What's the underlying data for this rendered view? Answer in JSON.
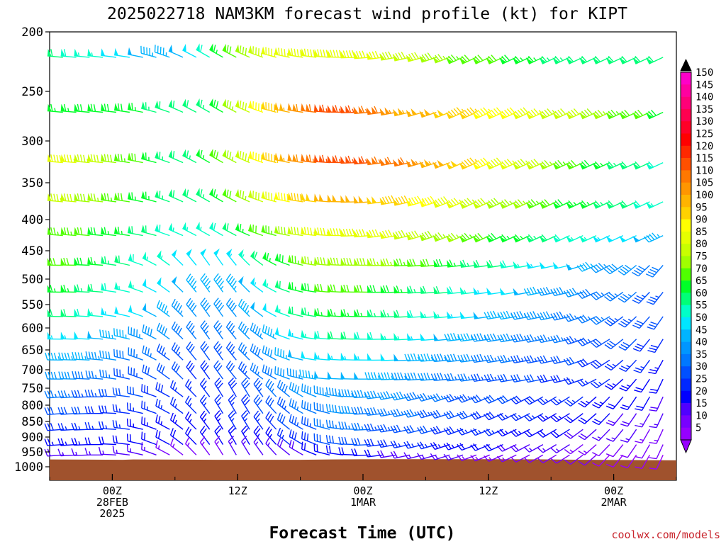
{
  "chart_data": {
    "type": "wind-barb time-height cross-section",
    "title": "2025022718 NAM3KM forecast wind profile (kt) for KIPT",
    "xlabel": "Forecast Time (UTC)",
    "credit": "coolwx.com/models",
    "y_axis": {
      "scale": "log-pressure",
      "range": [
        1000,
        200
      ],
      "ticks": [
        "200",
        "250",
        "300",
        "350",
        "400",
        "450",
        "500",
        "550",
        "600",
        "650",
        "700",
        "750",
        "800",
        "850",
        "900",
        "950",
        "1000"
      ]
    },
    "x_axis": {
      "range_hours": [
        -6,
        54
      ],
      "ticks": [
        {
          "hour": 0,
          "lines": [
            "00Z",
            "28FEB",
            "2025"
          ]
        },
        {
          "hour": 12,
          "lines": [
            "12Z"
          ]
        },
        {
          "hour": 24,
          "lines": [
            "00Z",
            "1MAR"
          ]
        },
        {
          "hour": 36,
          "lines": [
            "12Z"
          ]
        },
        {
          "hour": 48,
          "lines": [
            "00Z",
            "2MAR"
          ]
        }
      ]
    },
    "colorbar": {
      "levels": [
        "150",
        "145",
        "140",
        "135",
        "130",
        "125",
        "120",
        "115",
        "110",
        "105",
        "100",
        "95",
        "90",
        "85",
        "80",
        "75",
        "70",
        "65",
        "60",
        "55",
        "50",
        "45",
        "40",
        "35",
        "30",
        "25",
        "20",
        "15",
        "10",
        "5"
      ],
      "colors": [
        "#ff00c8",
        "#ff00a0",
        "#ff0078",
        "#ff0050",
        "#ff0028",
        "#ff0000",
        "#ff2800",
        "#ff5000",
        "#ff7800",
        "#ff9600",
        "#ffb400",
        "#ffd200",
        "#ffff00",
        "#e6ff00",
        "#c8ff00",
        "#a0ff00",
        "#50ff00",
        "#00ff28",
        "#00ff78",
        "#00ffc8",
        "#00e6ff",
        "#00b4ff",
        "#0096ff",
        "#0078ff",
        "#0050ff",
        "#0028ff",
        "#0000ff",
        "#5000ff",
        "#7800ff",
        "#9600ff"
      ]
    },
    "terrain": {
      "color": "#a0522d",
      "surface_pressure": [
        {
          "hour": -6,
          "p": 975
        },
        {
          "hour": 1,
          "p": 976
        },
        {
          "hour": 2,
          "p": 975
        },
        {
          "hour": 10,
          "p": 976
        },
        {
          "hour": 18,
          "p": 976
        },
        {
          "hour": 21,
          "p": 975
        },
        {
          "hour": 27,
          "p": 974
        },
        {
          "hour": 36,
          "p": 974
        },
        {
          "hour": 42,
          "p": 975
        },
        {
          "hour": 45,
          "p": 976
        },
        {
          "hour": 50,
          "p": 977
        },
        {
          "hour": 54,
          "p": 978
        }
      ]
    },
    "levels_hpa": [
      220,
      270,
      325,
      375,
      425,
      475,
      525,
      575,
      625,
      675,
      725,
      775,
      825,
      875,
      925,
      960
    ],
    "barb_hours_approx": "-6 to 54 every 1.25",
    "speed_kt_by_level": [
      [
        60,
        60,
        58,
        57,
        55,
        52,
        50,
        48,
        47,
        46,
        48,
        52,
        58,
        65,
        72,
        78,
        83,
        85,
        87,
        88,
        88,
        88,
        88,
        88,
        87,
        85,
        84,
        82,
        80,
        78,
        76,
        74,
        72,
        70,
        70,
        68,
        66,
        65,
        64,
        63,
        62,
        62,
        61,
        60,
        60,
        60,
        60,
        60
      ],
      [
        65,
        66,
        67,
        68,
        68,
        68,
        68,
        66,
        64,
        62,
        61,
        62,
        64,
        68,
        75,
        82,
        90,
        97,
        103,
        108,
        112,
        115,
        116,
        115,
        113,
        110,
        107,
        104,
        102,
        100,
        98,
        96,
        95,
        94,
        92,
        90,
        88,
        86,
        84,
        82,
        80,
        78,
        76,
        74,
        72,
        70,
        68,
        66
      ],
      [
        90,
        88,
        86,
        84,
        82,
        78,
        74,
        70,
        66,
        64,
        62,
        63,
        66,
        70,
        76,
        83,
        90,
        97,
        104,
        109,
        113,
        116,
        117,
        117,
        116,
        114,
        112,
        110,
        107,
        104,
        101,
        98,
        95,
        92,
        89,
        86,
        83,
        80,
        77,
        74,
        71,
        68,
        66,
        64,
        62,
        60,
        58,
        56
      ],
      [
        85,
        83,
        81,
        78,
        76,
        73,
        70,
        67,
        65,
        63,
        61,
        62,
        64,
        67,
        71,
        76,
        81,
        86,
        91,
        95,
        98,
        100,
        101,
        101,
        100,
        99,
        97,
        95,
        93,
        91,
        88,
        86,
        84,
        82,
        79,
        77,
        75,
        73,
        71,
        69,
        67,
        65,
        63,
        61,
        60,
        58,
        56,
        54
      ],
      [
        75,
        74,
        73,
        71,
        69,
        67,
        65,
        62,
        60,
        58,
        56,
        56,
        57,
        59,
        62,
        66,
        70,
        74,
        78,
        82,
        85,
        87,
        88,
        88,
        87,
        86,
        85,
        83,
        81,
        79,
        77,
        75,
        73,
        71,
        69,
        67,
        65,
        63,
        61,
        59,
        57,
        55,
        53,
        51,
        50,
        48,
        46,
        44
      ],
      [
        72,
        71,
        70,
        68,
        66,
        64,
        62,
        59,
        57,
        55,
        52,
        51,
        51,
        52,
        54,
        57,
        61,
        65,
        69,
        73,
        76,
        78,
        79,
        79,
        78,
        77,
        76,
        74,
        72,
        70,
        68,
        66,
        64,
        62,
        60,
        58,
        56,
        54,
        52,
        50,
        48,
        46,
        44,
        42,
        40,
        39,
        38,
        37
      ],
      [
        68,
        67,
        66,
        64,
        62,
        59,
        57,
        55,
        52,
        50,
        48,
        46,
        45,
        45,
        46,
        49,
        53,
        57,
        61,
        65,
        68,
        70,
        71,
        71,
        70,
        69,
        68,
        66,
        64,
        62,
        60,
        58,
        56,
        54,
        52,
        50,
        48,
        46,
        44,
        42,
        40,
        38,
        37,
        36,
        35,
        34,
        33,
        32
      ],
      [
        62,
        61,
        60,
        58,
        56,
        54,
        52,
        50,
        48,
        46,
        44,
        42,
        41,
        41,
        42,
        45,
        48,
        52,
        56,
        60,
        63,
        65,
        66,
        66,
        65,
        64,
        63,
        61,
        59,
        57,
        55,
        53,
        51,
        49,
        47,
        45,
        43,
        41,
        40,
        38,
        37,
        36,
        35,
        34,
        33,
        32,
        31,
        30
      ],
      [
        55,
        54,
        53,
        51,
        49,
        47,
        45,
        43,
        41,
        40,
        38,
        37,
        36,
        36,
        37,
        40,
        43,
        46,
        50,
        54,
        57,
        59,
        60,
        60,
        59,
        58,
        57,
        55,
        53,
        51,
        49,
        47,
        45,
        43,
        42,
        40,
        38,
        37,
        36,
        35,
        34,
        33,
        32,
        31,
        30,
        29,
        28,
        27
      ],
      [
        48,
        47,
        46,
        45,
        43,
        41,
        39,
        37,
        36,
        34,
        33,
        32,
        32,
        33,
        34,
        36,
        39,
        42,
        45,
        48,
        51,
        53,
        54,
        54,
        53,
        52,
        51,
        49,
        47,
        45,
        43,
        41,
        40,
        38,
        37,
        35,
        34,
        33,
        32,
        31,
        30,
        29,
        28,
        27,
        26,
        25,
        24,
        23
      ],
      [
        42,
        41,
        40,
        39,
        37,
        36,
        34,
        33,
        32,
        31,
        30,
        29,
        29,
        30,
        31,
        33,
        35,
        38,
        41,
        44,
        46,
        48,
        49,
        49,
        48,
        47,
        46,
        44,
        42,
        40,
        38,
        37,
        35,
        34,
        33,
        32,
        31,
        30,
        29,
        28,
        27,
        26,
        25,
        24,
        23,
        22,
        21,
        20
      ],
      [
        36,
        36,
        35,
        34,
        33,
        32,
        31,
        30,
        29,
        28,
        27,
        27,
        27,
        28,
        29,
        31,
        33,
        35,
        38,
        40,
        42,
        43,
        44,
        44,
        43,
        42,
        41,
        40,
        38,
        37,
        35,
        34,
        33,
        32,
        31,
        30,
        29,
        28,
        27,
        26,
        25,
        24,
        23,
        22,
        21,
        20,
        19,
        18
      ],
      [
        32,
        32,
        31,
        30,
        29,
        28,
        27,
        27,
        26,
        26,
        25,
        25,
        25,
        26,
        27,
        28,
        30,
        32,
        34,
        36,
        38,
        39,
        40,
        40,
        39,
        38,
        37,
        36,
        35,
        34,
        32,
        31,
        30,
        29,
        28,
        27,
        26,
        25,
        24,
        23,
        22,
        21,
        20,
        19,
        18,
        17,
        16,
        15
      ],
      [
        28,
        28,
        27,
        27,
        26,
        25,
        25,
        24,
        24,
        23,
        23,
        23,
        23,
        24,
        25,
        26,
        27,
        29,
        31,
        33,
        34,
        35,
        36,
        36,
        35,
        34,
        33,
        32,
        31,
        30,
        29,
        28,
        27,
        26,
        25,
        24,
        23,
        22,
        21,
        20,
        19,
        18,
        17,
        16,
        15,
        14,
        13,
        12
      ],
      [
        24,
        24,
        23,
        23,
        22,
        22,
        21,
        21,
        20,
        20,
        20,
        20,
        20,
        20,
        21,
        22,
        23,
        24,
        26,
        28,
        29,
        30,
        31,
        31,
        30,
        29,
        28,
        27,
        26,
        25,
        24,
        23,
        22,
        21,
        20,
        19,
        18,
        17,
        16,
        15,
        14,
        13,
        12,
        12,
        11,
        11,
        10,
        10
      ],
      [
        18,
        18,
        17,
        17,
        16,
        16,
        15,
        15,
        15,
        14,
        14,
        14,
        14,
        14,
        15,
        15,
        16,
        17,
        18,
        19,
        20,
        21,
        21,
        21,
        20,
        20,
        19,
        18,
        17,
        16,
        16,
        15,
        14,
        14,
        13,
        13,
        12,
        12,
        11,
        11,
        10,
        10,
        9,
        9,
        9,
        8,
        8,
        8
      ]
    ],
    "direction_deg_from": "mostly W/NW early (270-300), veering NW/N mid-period near 12Z 28FEB, W/SW later at upper levels, S/SW at low levels late period"
  }
}
